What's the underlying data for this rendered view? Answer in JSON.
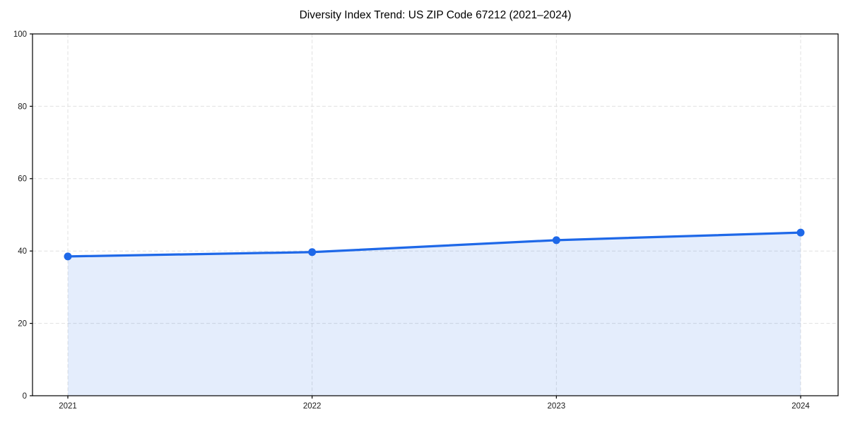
{
  "title": "Diversity Index Trend: US ZIP Code 67212 (2021–2024)",
  "chart_data": {
    "type": "line",
    "categories": [
      "2021",
      "2022",
      "2023",
      "2024"
    ],
    "series": [
      {
        "name": "Diversity Index",
        "values": [
          38.5,
          39.7,
          43.0,
          45.1
        ]
      }
    ],
    "title": "Diversity Index Trend: US ZIP Code 67212 (2021–2024)",
    "xlabel": "",
    "ylabel": "",
    "ylim": [
      0,
      100
    ],
    "yticks": [
      0,
      20,
      40,
      60,
      80,
      100
    ],
    "grid": true,
    "grid_style": "dashed",
    "legend_position": "none",
    "marker": "circle",
    "area_fill": true,
    "colors": {
      "line": "#1e68e8",
      "fill": "rgba(30,104,232,0.12)",
      "grid": "#e0e0e0",
      "spine": "#000000",
      "tick_label": "#1a1a1a"
    }
  }
}
